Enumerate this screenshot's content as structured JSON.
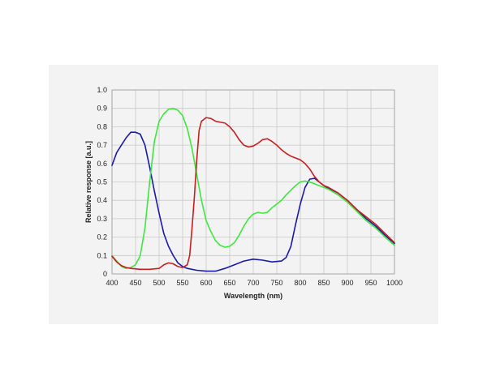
{
  "chart_data": {
    "type": "line",
    "title": "",
    "xlabel": "Wavelength (nm)",
    "ylabel": "Relative response [a.u.]",
    "xlim": [
      400,
      1000
    ],
    "ylim": [
      0,
      1.0
    ],
    "x_ticks": [
      "400",
      "450",
      "500",
      "550",
      "600",
      "650",
      "700",
      "750",
      "800",
      "850",
      "900",
      "950",
      "1000"
    ],
    "y_ticks": [
      "0",
      "0.1",
      "0.2",
      "0.3",
      "0.4",
      "0.5",
      "0.6",
      "0.7",
      "0.8",
      "0.9",
      "1.0"
    ],
    "grid": true,
    "series": [
      {
        "color": "#1a1aa8",
        "points": [
          [
            400,
            0.59
          ],
          [
            410,
            0.66
          ],
          [
            420,
            0.7
          ],
          [
            430,
            0.74
          ],
          [
            440,
            0.77
          ],
          [
            450,
            0.77
          ],
          [
            460,
            0.76
          ],
          [
            470,
            0.7
          ],
          [
            480,
            0.58
          ],
          [
            490,
            0.45
          ],
          [
            500,
            0.33
          ],
          [
            510,
            0.22
          ],
          [
            520,
            0.15
          ],
          [
            530,
            0.1
          ],
          [
            540,
            0.06
          ],
          [
            550,
            0.04
          ],
          [
            560,
            0.03
          ],
          [
            580,
            0.02
          ],
          [
            600,
            0.015
          ],
          [
            620,
            0.015
          ],
          [
            640,
            0.03
          ],
          [
            660,
            0.05
          ],
          [
            680,
            0.07
          ],
          [
            700,
            0.08
          ],
          [
            720,
            0.075
          ],
          [
            740,
            0.065
          ],
          [
            760,
            0.07
          ],
          [
            770,
            0.09
          ],
          [
            780,
            0.15
          ],
          [
            790,
            0.27
          ],
          [
            800,
            0.38
          ],
          [
            810,
            0.47
          ],
          [
            820,
            0.515
          ],
          [
            830,
            0.52
          ],
          [
            840,
            0.5
          ],
          [
            850,
            0.48
          ],
          [
            860,
            0.465
          ],
          [
            880,
            0.44
          ],
          [
            900,
            0.4
          ],
          [
            920,
            0.35
          ],
          [
            940,
            0.3
          ],
          [
            960,
            0.26
          ],
          [
            980,
            0.21
          ],
          [
            1000,
            0.165
          ]
        ]
      },
      {
        "color": "#3de83d",
        "points": [
          [
            400,
            0.1
          ],
          [
            410,
            0.07
          ],
          [
            420,
            0.04
          ],
          [
            430,
            0.03
          ],
          [
            440,
            0.035
          ],
          [
            450,
            0.05
          ],
          [
            460,
            0.1
          ],
          [
            470,
            0.25
          ],
          [
            480,
            0.5
          ],
          [
            490,
            0.72
          ],
          [
            500,
            0.83
          ],
          [
            510,
            0.87
          ],
          [
            520,
            0.895
          ],
          [
            530,
            0.9
          ],
          [
            540,
            0.89
          ],
          [
            550,
            0.86
          ],
          [
            560,
            0.79
          ],
          [
            570,
            0.68
          ],
          [
            580,
            0.54
          ],
          [
            590,
            0.4
          ],
          [
            600,
            0.29
          ],
          [
            610,
            0.23
          ],
          [
            620,
            0.18
          ],
          [
            630,
            0.155
          ],
          [
            640,
            0.145
          ],
          [
            650,
            0.15
          ],
          [
            660,
            0.17
          ],
          [
            670,
            0.21
          ],
          [
            680,
            0.26
          ],
          [
            690,
            0.3
          ],
          [
            700,
            0.325
          ],
          [
            710,
            0.335
          ],
          [
            720,
            0.33
          ],
          [
            730,
            0.335
          ],
          [
            740,
            0.36
          ],
          [
            750,
            0.38
          ],
          [
            760,
            0.4
          ],
          [
            770,
            0.43
          ],
          [
            780,
            0.455
          ],
          [
            790,
            0.48
          ],
          [
            800,
            0.5
          ],
          [
            810,
            0.505
          ],
          [
            820,
            0.5
          ],
          [
            830,
            0.49
          ],
          [
            840,
            0.48
          ],
          [
            850,
            0.47
          ],
          [
            860,
            0.46
          ],
          [
            880,
            0.43
          ],
          [
            900,
            0.39
          ],
          [
            920,
            0.34
          ],
          [
            940,
            0.29
          ],
          [
            960,
            0.25
          ],
          [
            980,
            0.2
          ],
          [
            1000,
            0.155
          ]
        ]
      },
      {
        "color": "#c81e1e",
        "points": [
          [
            400,
            0.095
          ],
          [
            410,
            0.065
          ],
          [
            420,
            0.045
          ],
          [
            430,
            0.035
          ],
          [
            440,
            0.03
          ],
          [
            460,
            0.025
          ],
          [
            480,
            0.025
          ],
          [
            500,
            0.03
          ],
          [
            510,
            0.05
          ],
          [
            520,
            0.06
          ],
          [
            530,
            0.055
          ],
          [
            540,
            0.04
          ],
          [
            550,
            0.035
          ],
          [
            560,
            0.05
          ],
          [
            565,
            0.1
          ],
          [
            570,
            0.25
          ],
          [
            575,
            0.42
          ],
          [
            580,
            0.62
          ],
          [
            585,
            0.78
          ],
          [
            590,
            0.83
          ],
          [
            600,
            0.85
          ],
          [
            610,
            0.845
          ],
          [
            620,
            0.83
          ],
          [
            640,
            0.82
          ],
          [
            650,
            0.8
          ],
          [
            660,
            0.77
          ],
          [
            670,
            0.73
          ],
          [
            680,
            0.7
          ],
          [
            690,
            0.69
          ],
          [
            700,
            0.695
          ],
          [
            710,
            0.71
          ],
          [
            720,
            0.73
          ],
          [
            730,
            0.735
          ],
          [
            740,
            0.72
          ],
          [
            750,
            0.7
          ],
          [
            760,
            0.675
          ],
          [
            770,
            0.655
          ],
          [
            780,
            0.64
          ],
          [
            790,
            0.63
          ],
          [
            800,
            0.62
          ],
          [
            810,
            0.6
          ],
          [
            820,
            0.57
          ],
          [
            830,
            0.53
          ],
          [
            840,
            0.5
          ],
          [
            850,
            0.48
          ],
          [
            860,
            0.47
          ],
          [
            880,
            0.44
          ],
          [
            900,
            0.4
          ],
          [
            920,
            0.35
          ],
          [
            940,
            0.31
          ],
          [
            960,
            0.27
          ],
          [
            980,
            0.22
          ],
          [
            1000,
            0.17
          ]
        ]
      }
    ]
  }
}
